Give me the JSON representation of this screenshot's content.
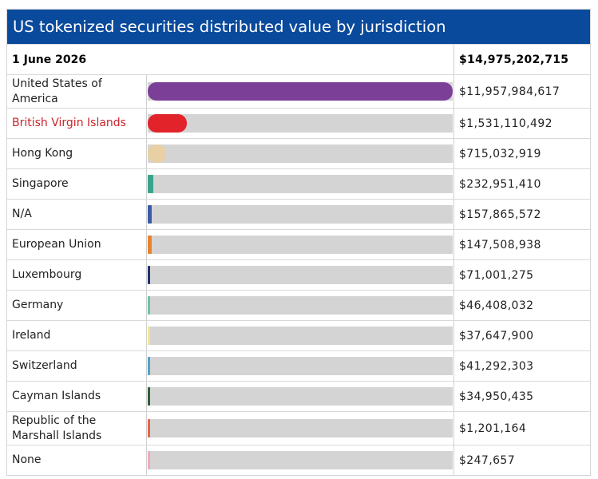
{
  "title": "US tokenized securities distributed value by jurisdiction",
  "header": {
    "date": "1 June 2026",
    "total": "$14,975,202,715"
  },
  "colors": {
    "title_bg": "#0a4a9c",
    "track": "#d4d4d4"
  },
  "chart_data": {
    "type": "bar",
    "orientation": "horizontal",
    "categories": [
      "United States of America",
      "British Virgin Islands",
      "Hong Kong",
      "Singapore",
      "N/A",
      "European Union",
      "Luxembourg",
      "Germany",
      "Ireland",
      "Switzerland",
      "Cayman Islands",
      "Republic of the Marshall Islands",
      "None"
    ],
    "values": [
      11957984617,
      1531110492,
      715032919,
      232951410,
      157865572,
      147508938,
      71001275,
      46408032,
      37647900,
      41292303,
      34950435,
      1201164,
      247657
    ],
    "value_labels": [
      "$11,957,984,617",
      "$1,531,110,492",
      "$715,032,919",
      "$232,951,410",
      "$157,865,572",
      "$147,508,938",
      "$71,001,275",
      "$46,408,032",
      "$37,647,900",
      "$41,292,303",
      "$34,950,435",
      "$1,201,164",
      "$247,657"
    ],
    "bar_colors": [
      "#7b3f98",
      "#e2232a",
      "#e8cfa4",
      "#3aa38c",
      "#3a5ba8",
      "#e8842e",
      "#23306b",
      "#6cc3a0",
      "#f3e58a",
      "#4fa3c7",
      "#2f5e3a",
      "#e8634a",
      "#f0a8b8"
    ],
    "highlighted_category": "British Virgin Islands",
    "highlight_color": "#c9252b",
    "xlim": [
      0,
      11957984617
    ]
  }
}
